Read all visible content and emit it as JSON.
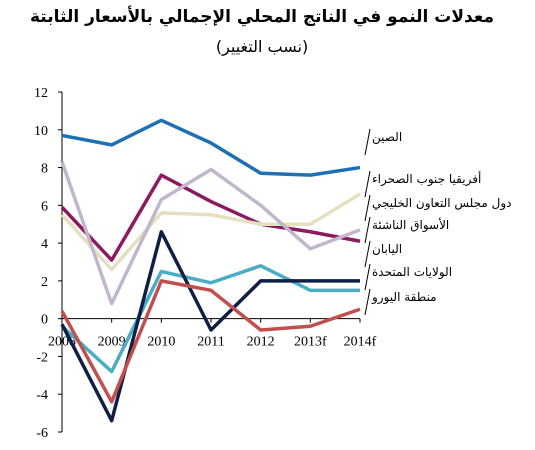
{
  "chart_data": {
    "type": "line",
    "title": "معدلات النمو في الناتج المحلي الإجمالي بالأسعار الثابتة",
    "subtitle": "(نسب التغيير)",
    "categories": [
      "2008",
      "2009",
      "2010",
      "2011",
      "2012",
      "2013f",
      "2014f"
    ],
    "ylim": [
      -6,
      12
    ],
    "yticks": [
      -6,
      -4,
      -2,
      0,
      2,
      4,
      6,
      8,
      10,
      12
    ],
    "series": [
      {
        "name": "الصين",
        "color": "#1f6fb5",
        "values": [
          9.7,
          9.2,
          10.5,
          9.3,
          7.7,
          7.6,
          8.0
        ]
      },
      {
        "name": "أفريقيا جنوب الصحراء",
        "color": "#8b1a5e",
        "values": [
          5.9,
          3.1,
          7.6,
          6.2,
          5.0,
          4.6,
          4.1
        ]
      },
      {
        "name": "دول مجلس التعاون الخليجي",
        "color": "#e6dfc0",
        "values": [
          5.5,
          2.6,
          5.6,
          5.5,
          5.0,
          5.0,
          6.6
        ]
      },
      {
        "name": "الأسواق الناشئة",
        "color": "#c2b6cc",
        "values": [
          8.3,
          0.8,
          6.3,
          7.9,
          6.0,
          3.7,
          4.7
        ]
      },
      {
        "name": "اليابان",
        "color": "#4bacc6",
        "values": [
          -0.4,
          -2.8,
          2.5,
          1.9,
          2.8,
          1.5,
          1.5
        ]
      },
      {
        "name": "الولايات المتحدة",
        "color": "#0f1f45",
        "values": [
          -0.3,
          -5.4,
          4.6,
          -0.6,
          2.0,
          2.0,
          2.0
        ]
      },
      {
        "name": "منطقة اليورو",
        "color": "#c0504d",
        "values": [
          0.4,
          -4.4,
          2.0,
          1.5,
          -0.6,
          -0.4,
          0.5
        ]
      }
    ]
  }
}
